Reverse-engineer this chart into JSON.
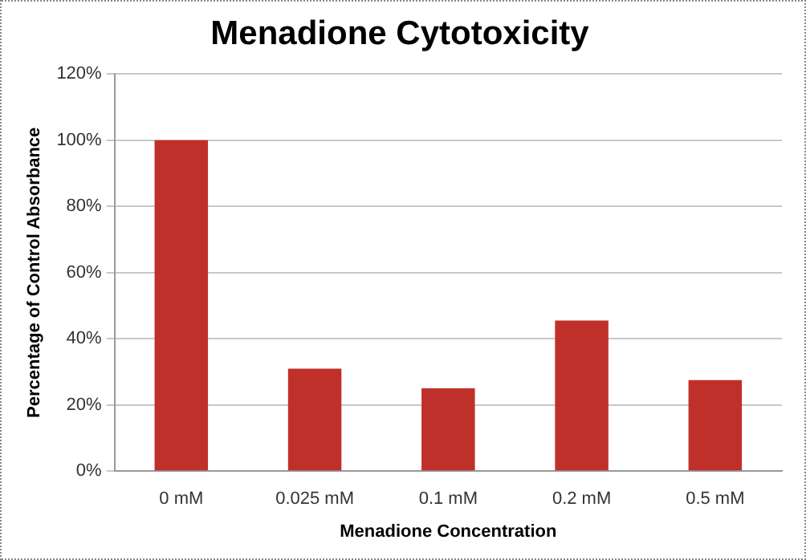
{
  "chart_data": {
    "type": "bar",
    "title": "Menadione Cytotoxicity",
    "xlabel": "Menadione Concentration",
    "ylabel": "Percentage of Control Absorbance",
    "categories": [
      "0 mM",
      "0.025 mM",
      "0.1 mM",
      "0.2 mM",
      "0.5 mM"
    ],
    "values": [
      100,
      31,
      25,
      45.5,
      27.5
    ],
    "color": "#c0302a",
    "ylim": [
      0,
      120
    ],
    "yticks": [
      {
        "value": 0,
        "label": "0%"
      },
      {
        "value": 20,
        "label": "20%"
      },
      {
        "value": 40,
        "label": "40%"
      },
      {
        "value": 60,
        "label": "60%"
      },
      {
        "value": 80,
        "label": "80%"
      },
      {
        "value": 100,
        "label": "100%"
      },
      {
        "value": 120,
        "label": "120%"
      }
    ],
    "grid": "y",
    "legend": false
  }
}
